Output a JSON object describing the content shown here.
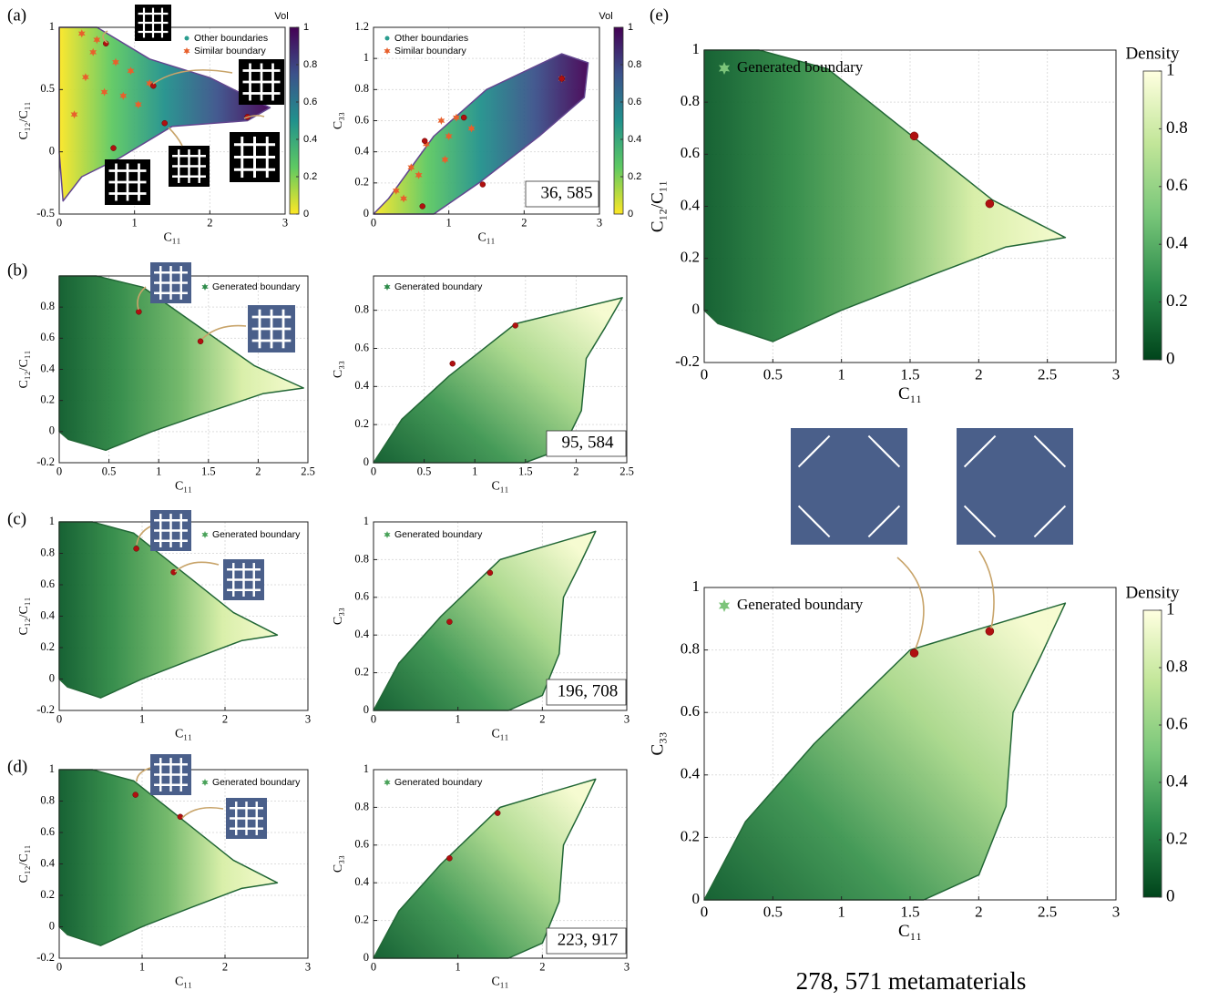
{
  "chart_data": [
    {
      "type": "scatter",
      "panel": "(a)",
      "xlabel": "C₁₁",
      "ylabel": "C₁₂/C₁₁",
      "xlim": [
        0,
        3
      ],
      "xticks": [
        0,
        1,
        2,
        3
      ],
      "ylim": [
        -0.5,
        1
      ],
      "yticks": [
        -0.5,
        0,
        0.5,
        1
      ],
      "grid": true,
      "series": [
        {
          "name": "Other boundaries",
          "color": "#2a9d8f",
          "marker": "circle",
          "x": [],
          "y": []
        },
        {
          "name": "Similar boundary",
          "color": "#e8602c",
          "marker": "star",
          "x": [
            0.3,
            0.45,
            0.75,
            0.95,
            0.6,
            0.85,
            1.2,
            0.35,
            0.2,
            0.5,
            1.05
          ],
          "y": [
            0.95,
            0.8,
            0.72,
            0.65,
            0.48,
            0.45,
            0.55,
            0.6,
            0.3,
            0.9,
            0.38
          ]
        }
      ],
      "highlights": {
        "color": "#b01010",
        "x": [
          0.62,
          1.25,
          1.4,
          0.72,
          2.5
        ],
        "y": [
          0.87,
          0.53,
          0.23,
          0.03,
          0.28
        ]
      },
      "colorbar": {
        "label": "Vol",
        "lim": [
          0,
          1
        ],
        "ticks": [
          0,
          0.2,
          0.4,
          0.6,
          0.8,
          1
        ],
        "colors": [
          "#fde725",
          "#5ec962",
          "#21918c",
          "#3b528b",
          "#440154"
        ]
      }
    },
    {
      "type": "scatter",
      "xlabel": "C₁₁",
      "ylabel": "C₃₃",
      "xlim": [
        0,
        3
      ],
      "xticks": [
        0,
        1,
        2,
        3
      ],
      "ylim": [
        0,
        1.2
      ],
      "yticks": [
        0,
        0.2,
        0.4,
        0.6,
        0.8,
        1,
        1.2
      ],
      "grid": true,
      "series": [
        {
          "name": "Other boundaries",
          "color": "#2a9d8f",
          "marker": "circle",
          "x": [],
          "y": []
        },
        {
          "name": "Similar boundary",
          "color": "#e8602c",
          "marker": "star",
          "x": [
            0.4,
            0.5,
            0.7,
            0.9,
            1.1,
            0.95,
            0.6,
            1.3,
            0.3,
            2.5,
            1.0
          ],
          "y": [
            0.1,
            0.3,
            0.45,
            0.6,
            0.62,
            0.35,
            0.25,
            0.55,
            0.15,
            0.87,
            0.5
          ]
        }
      ],
      "highlights": {
        "color": "#b01010",
        "x": [
          0.68,
          1.2,
          1.45,
          2.5,
          0.65
        ],
        "y": [
          0.47,
          0.62,
          0.19,
          0.87,
          0.05
        ]
      },
      "annotation": "36, 585",
      "colorbar": {
        "label": "Vol",
        "lim": [
          0,
          1
        ],
        "ticks": [
          0,
          0.2,
          0.4,
          0.6,
          0.8,
          1
        ],
        "colors": [
          "#fde725",
          "#5ec962",
          "#21918c",
          "#3b528b",
          "#440154"
        ]
      }
    },
    {
      "type": "scatter",
      "panel": "(b)",
      "xlabel": "C₁₁",
      "ylabel": "C₁₂/C₁₁",
      "xlim": [
        0,
        2.5
      ],
      "xticks": [
        0,
        0.5,
        1,
        1.5,
        2,
        2.5
      ],
      "ylim": [
        -0.2,
        1
      ],
      "yticks": [
        -0.2,
        0,
        0.2,
        0.4,
        0.6,
        0.8
      ],
      "grid": true,
      "series": [
        {
          "name": "Generated boundary",
          "color": "#2e8b4a",
          "marker": "star",
          "x": [],
          "y": []
        }
      ],
      "highlights": {
        "color": "#b01010",
        "x": [
          0.8,
          1.42
        ],
        "y": [
          0.77,
          0.58
        ]
      }
    },
    {
      "type": "scatter",
      "xlabel": "C₁₁",
      "ylabel": "C₃₃",
      "xlim": [
        0,
        2.5
      ],
      "xticks": [
        0,
        0.5,
        1,
        1.5,
        2,
        2.5
      ],
      "ylim": [
        0,
        0.98
      ],
      "yticks": [
        0,
        0.2,
        0.4,
        0.6,
        0.8
      ],
      "grid": true,
      "series": [
        {
          "name": "Generated boundary",
          "color": "#2e8b4a",
          "marker": "star",
          "x": [],
          "y": []
        }
      ],
      "highlights": {
        "color": "#b01010",
        "x": [
          0.78,
          1.4
        ],
        "y": [
          0.52,
          0.72
        ]
      },
      "annotation": "95, 584"
    },
    {
      "type": "scatter",
      "panel": "(c)",
      "xlabel": "C₁₁",
      "ylabel": "C₁₂/C₁₁",
      "xlim": [
        0,
        3
      ],
      "xticks": [
        0,
        1,
        2,
        3
      ],
      "ylim": [
        -0.2,
        1
      ],
      "yticks": [
        -0.2,
        0,
        0.2,
        0.4,
        0.6,
        0.8,
        1
      ],
      "grid": true,
      "series": [
        {
          "name": "Generated boundary",
          "color": "#4aa25a",
          "marker": "star",
          "x": [],
          "y": []
        }
      ],
      "highlights": {
        "color": "#b01010",
        "x": [
          0.93,
          1.38
        ],
        "y": [
          0.83,
          0.68
        ]
      }
    },
    {
      "type": "scatter",
      "xlabel": "C₁₁",
      "ylabel": "C₃₃",
      "xlim": [
        0,
        3
      ],
      "xticks": [
        0,
        1,
        2,
        3
      ],
      "ylim": [
        0,
        1
      ],
      "yticks": [
        0,
        0.2,
        0.4,
        0.6,
        0.8,
        1
      ],
      "grid": true,
      "series": [
        {
          "name": "Generated boundary",
          "color": "#4aa25a",
          "marker": "star",
          "x": [],
          "y": []
        }
      ],
      "highlights": {
        "color": "#b01010",
        "x": [
          0.9,
          1.38
        ],
        "y": [
          0.47,
          0.73
        ]
      },
      "annotation": "196, 708"
    },
    {
      "type": "scatter",
      "panel": "(d)",
      "xlabel": "C₁₁",
      "ylabel": "C₁₂/C₁₁",
      "xlim": [
        0,
        3
      ],
      "xticks": [
        0,
        1,
        2,
        3
      ],
      "ylim": [
        -0.2,
        1
      ],
      "yticks": [
        -0.2,
        0,
        0.2,
        0.4,
        0.6,
        0.8,
        1
      ],
      "grid": true,
      "series": [
        {
          "name": "Generated boundary",
          "color": "#4aa25a",
          "marker": "star",
          "x": [],
          "y": []
        }
      ],
      "highlights": {
        "color": "#b01010",
        "x": [
          0.92,
          1.46
        ],
        "y": [
          0.84,
          0.7
        ]
      }
    },
    {
      "type": "scatter",
      "xlabel": "C₁₁",
      "ylabel": "C₃₃",
      "xlim": [
        0,
        3
      ],
      "xticks": [
        0,
        1,
        2,
        3
      ],
      "ylim": [
        0,
        1
      ],
      "yticks": [
        0,
        0.2,
        0.4,
        0.6,
        0.8,
        1
      ],
      "grid": true,
      "series": [
        {
          "name": "Generated boundary",
          "color": "#4aa25a",
          "marker": "star",
          "x": [],
          "y": []
        }
      ],
      "highlights": {
        "color": "#b01010",
        "x": [
          0.9,
          1.47
        ],
        "y": [
          0.53,
          0.77
        ]
      },
      "annotation": "223, 917"
    },
    {
      "type": "scatter",
      "panel": "(e)",
      "xlabel": "C₁₁",
      "ylabel": "C₁₂/C₁₁",
      "xlim": [
        0,
        3
      ],
      "xticks": [
        0,
        0.5,
        1,
        1.5,
        2,
        2.5,
        3
      ],
      "ylim": [
        -0.2,
        1
      ],
      "yticks": [
        -0.2,
        0,
        0.2,
        0.4,
        0.6,
        0.8,
        1
      ],
      "grid": true,
      "series": [
        {
          "name": "Generated boundary",
          "color": "#7cc47a",
          "marker": "star",
          "x": [],
          "y": []
        }
      ],
      "highlights": {
        "color": "#b01010",
        "x": [
          1.53,
          2.08
        ],
        "y": [
          0.67,
          0.41
        ]
      },
      "colorbar": {
        "label": "Density",
        "lim": [
          0,
          1
        ],
        "ticks": [
          0,
          0.2,
          0.4,
          0.6,
          0.8,
          1
        ],
        "colors": [
          "#00441b",
          "#2a8a4a",
          "#78c679",
          "#c2e699",
          "#ffffe0"
        ]
      }
    },
    {
      "type": "scatter",
      "xlabel": "C₁₁",
      "ylabel": "C₃₃",
      "xlim": [
        0,
        3
      ],
      "xticks": [
        0,
        0.5,
        1,
        1.5,
        2,
        2.5,
        3
      ],
      "ylim": [
        0,
        1
      ],
      "yticks": [
        0,
        0.2,
        0.4,
        0.6,
        0.8,
        1
      ],
      "grid": true,
      "series": [
        {
          "name": "Generated boundary",
          "color": "#7cc47a",
          "marker": "star",
          "x": [],
          "y": []
        }
      ],
      "highlights": {
        "color": "#b01010",
        "x": [
          1.53,
          2.08
        ],
        "y": [
          0.79,
          0.86
        ]
      },
      "annotation": "278, 571 metamaterials",
      "colorbar": {
        "label": "Density",
        "lim": [
          0,
          1
        ],
        "ticks": [
          0,
          0.2,
          0.4,
          0.6,
          0.8,
          1
        ],
        "colors": [
          "#00441b",
          "#2a8a4a",
          "#78c679",
          "#c2e699",
          "#ffffe0"
        ]
      }
    }
  ]
}
